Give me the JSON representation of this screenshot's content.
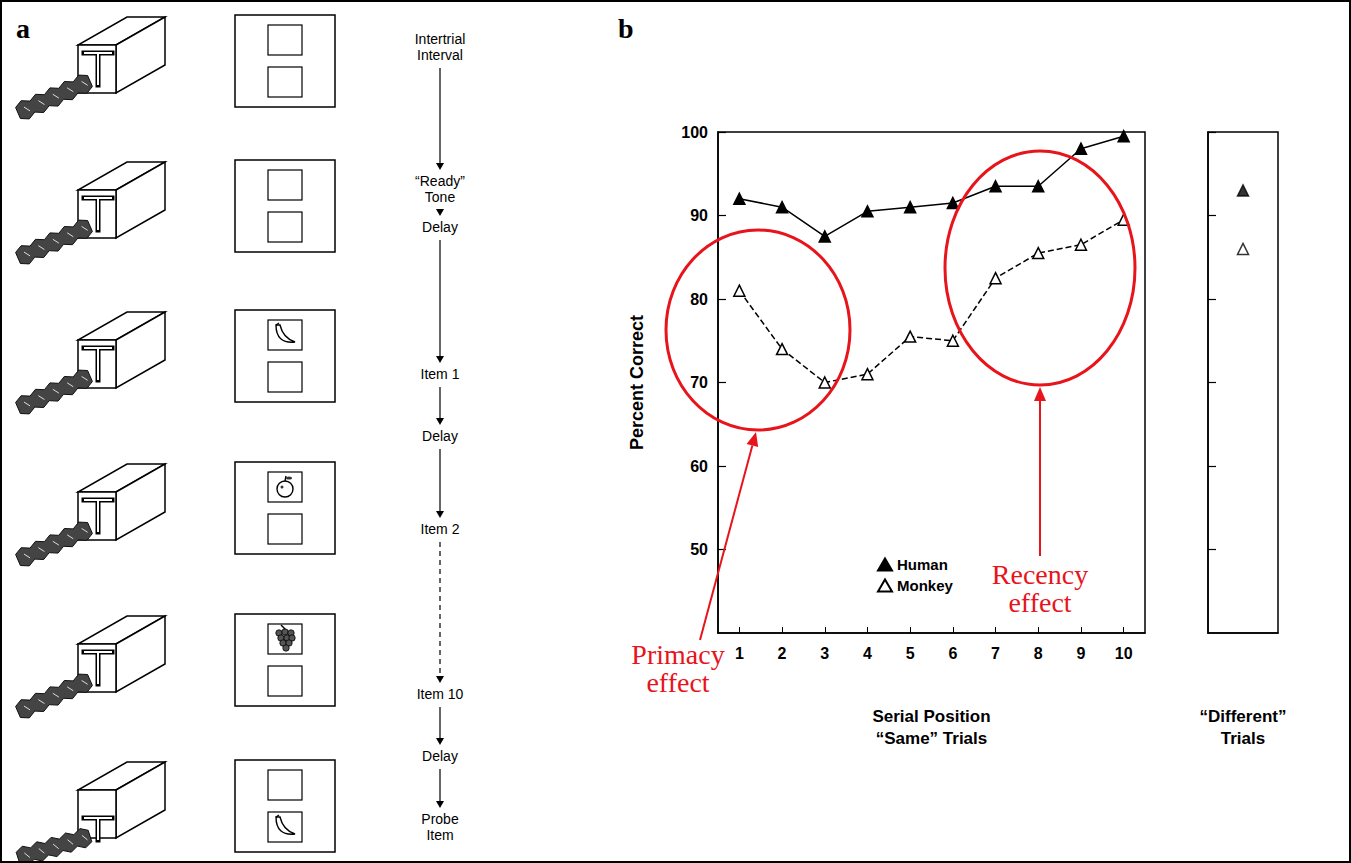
{
  "panels": [
    {
      "letter": "a",
      "steps": [
        "Intertrial\nInterval",
        "“Ready”\nTone",
        "Delay",
        "Item 1",
        "Delay",
        "Item 2",
        "Item 10",
        "Delay",
        "Probe\nItem"
      ]
    },
    {
      "letter": "b"
    }
  ],
  "chart_data": [
    {
      "type": "line",
      "ylabel": "Percent Correct",
      "xlabel": "Serial Position\n“Same” Trials",
      "categories": [
        "1",
        "2",
        "3",
        "4",
        "5",
        "6",
        "7",
        "8",
        "9",
        "10"
      ],
      "series": [
        {
          "name": "Human",
          "color": "#000000",
          "marker": "filled-triangle",
          "line_style": "solid",
          "values": [
            92,
            91,
            87.5,
            90.5,
            91,
            91.5,
            93.5,
            93.5,
            98,
            99.5
          ]
        },
        {
          "name": "Monkey",
          "color": "#000000",
          "marker": "open-triangle",
          "line_style": "dashed",
          "values": [
            81,
            74,
            70,
            71,
            75.5,
            75,
            82.5,
            85.5,
            86.5,
            89.5
          ]
        }
      ],
      "ylim": [
        40,
        100
      ],
      "yticks": [
        50,
        60,
        70,
        80,
        90,
        100
      ],
      "grid": false,
      "legend": "bottom",
      "annotations": [
        {
          "text": "Primacy\neffect",
          "color": "#e8141b"
        },
        {
          "text": "Recency\neffect",
          "color": "#e8141b"
        }
      ]
    },
    {
      "type": "scatter",
      "xlabel": "“Different”\nTrials",
      "categories": [
        null
      ],
      "series": [
        {
          "name": "Human",
          "color": "#000000",
          "marker": "filled-triangle",
          "values": [
            93
          ]
        },
        {
          "name": "Monkey",
          "color": "#000000",
          "marker": "open-triangle",
          "values": [
            86
          ]
        }
      ],
      "ylim": [
        40,
        100
      ],
      "yticks": [
        50,
        60,
        70,
        80,
        90,
        100
      ],
      "tick_labels": false,
      "grid": false
    }
  ]
}
